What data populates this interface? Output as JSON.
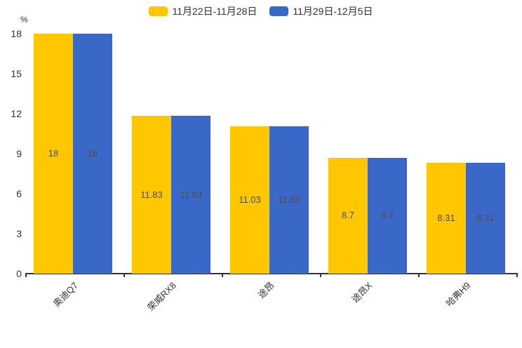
{
  "chart_data": {
    "type": "bar",
    "title": "",
    "unit_label": "%",
    "categories": [
      "奥迪Q7",
      "荣威RX8",
      "途昂",
      "途昂X",
      "哈弗H9"
    ],
    "series": [
      {
        "name": "11月22日-11月28日",
        "color": "#FFC700",
        "values": [
          18,
          11.83,
          11.03,
          8.7,
          8.31
        ]
      },
      {
        "name": "11月29日-12月5日",
        "color": "#3A68C9",
        "values": [
          18,
          11.83,
          11.03,
          8.7,
          8.31
        ]
      }
    ],
    "bar_value_labels": [
      [
        "18",
        "11.83",
        "11.03",
        "8.7",
        "8.31"
      ],
      [
        "18",
        "11.83",
        "11.03",
        "8.7",
        "8.31"
      ]
    ],
    "ylim": [
      0,
      18
    ],
    "yticks": [
      0,
      3,
      6,
      9,
      12,
      15,
      18
    ],
    "grid": false,
    "legend_position": "top-center",
    "axis_color": "#333333",
    "value_label_color": "#4d4d4d"
  }
}
